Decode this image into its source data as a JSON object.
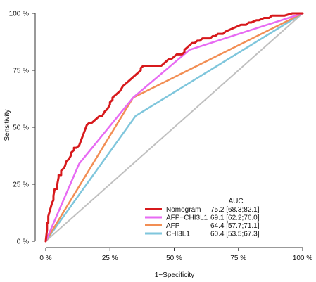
{
  "chart_data": {
    "type": "line",
    "title": "",
    "xlabel": "1−Specificity",
    "ylabel": "Sensitivity",
    "xlim": [
      0,
      100
    ],
    "ylim": [
      0,
      100
    ],
    "xticks": [
      0,
      25,
      50,
      75,
      100
    ],
    "yticks": [
      0,
      25,
      50,
      75,
      100
    ],
    "tick_labels_x": [
      "0 %",
      "25 %",
      "50 %",
      "75 %",
      "100 %"
    ],
    "tick_labels_y": [
      "0 %",
      "25 %",
      "50 %",
      "75 %",
      "100 %"
    ],
    "grid": false,
    "legend": {
      "title": "AUC",
      "position": "bottom-right"
    },
    "reference_line": {
      "color": "#c0c0c0",
      "points": [
        [
          0,
          0
        ],
        [
          100,
          100
        ]
      ]
    },
    "series": [
      {
        "name": "Nomogram",
        "auc": "75.2 [68.3;82.1]",
        "color": "#d7191c",
        "points": [
          [
            0,
            0
          ],
          [
            0.5,
            5
          ],
          [
            0.5,
            8
          ],
          [
            1,
            8
          ],
          [
            1,
            11
          ],
          [
            1.5,
            13
          ],
          [
            2,
            15
          ],
          [
            2.5,
            17
          ],
          [
            3,
            18
          ],
          [
            3,
            20
          ],
          [
            3.5,
            23
          ],
          [
            4,
            23
          ],
          [
            4.5,
            23
          ],
          [
            4.5,
            25
          ],
          [
            5,
            28
          ],
          [
            5,
            29
          ],
          [
            6,
            29
          ],
          [
            6,
            31
          ],
          [
            7,
            32
          ],
          [
            7.5,
            33
          ],
          [
            8,
            35
          ],
          [
            9,
            36
          ],
          [
            10,
            38
          ],
          [
            10,
            39
          ],
          [
            11,
            40
          ],
          [
            11,
            41
          ],
          [
            12,
            41
          ],
          [
            13,
            42
          ],
          [
            14,
            45
          ],
          [
            15,
            48
          ],
          [
            16,
            51
          ],
          [
            17,
            52
          ],
          [
            18,
            52
          ],
          [
            19,
            53
          ],
          [
            20,
            54
          ],
          [
            21,
            55
          ],
          [
            22,
            55
          ],
          [
            23,
            57
          ],
          [
            24,
            58
          ],
          [
            25,
            60
          ],
          [
            25,
            61
          ],
          [
            26,
            62
          ],
          [
            26,
            63
          ],
          [
            27,
            64
          ],
          [
            28,
            65
          ],
          [
            29,
            66
          ],
          [
            30,
            68
          ],
          [
            31,
            69
          ],
          [
            32,
            70
          ],
          [
            33,
            71
          ],
          [
            34,
            72
          ],
          [
            35,
            73
          ],
          [
            36,
            74
          ],
          [
            37,
            75
          ],
          [
            37,
            76
          ],
          [
            38,
            77
          ],
          [
            40,
            77
          ],
          [
            42,
            77
          ],
          [
            44,
            77
          ],
          [
            45,
            77
          ],
          [
            46,
            78
          ],
          [
            47,
            79
          ],
          [
            48,
            80
          ],
          [
            49,
            80
          ],
          [
            50,
            81
          ],
          [
            51,
            82
          ],
          [
            52,
            82
          ],
          [
            53,
            82
          ],
          [
            54,
            83
          ],
          [
            54,
            84
          ],
          [
            55,
            85
          ],
          [
            56,
            86
          ],
          [
            57,
            87
          ],
          [
            58,
            87
          ],
          [
            59,
            88
          ],
          [
            60,
            88
          ],
          [
            61,
            89
          ],
          [
            62,
            89
          ],
          [
            64,
            89
          ],
          [
            65,
            90
          ],
          [
            66,
            90
          ],
          [
            67,
            91
          ],
          [
            68,
            91
          ],
          [
            69,
            91
          ],
          [
            70,
            92
          ],
          [
            72,
            93
          ],
          [
            74,
            94
          ],
          [
            76,
            95
          ],
          [
            78,
            95
          ],
          [
            79,
            96
          ],
          [
            80,
            96
          ],
          [
            82,
            97
          ],
          [
            83,
            97
          ],
          [
            85,
            98
          ],
          [
            87,
            98
          ],
          [
            88,
            99
          ],
          [
            90,
            99
          ],
          [
            93,
            99
          ],
          [
            96,
            100
          ],
          [
            98,
            100
          ],
          [
            100,
            100
          ]
        ]
      },
      {
        "name": "AFP+CHI3L1",
        "auc": "69.1 [62.2;76.0]",
        "color": "#e76bf3",
        "points": [
          [
            0,
            0
          ],
          [
            13,
            34
          ],
          [
            34,
            63
          ],
          [
            56,
            84
          ],
          [
            100,
            100
          ]
        ]
      },
      {
        "name": "AFP",
        "auc": "64.4 [57.7;71.1]",
        "color": "#f28e54",
        "points": [
          [
            0,
            0
          ],
          [
            34,
            63
          ],
          [
            100,
            100
          ]
        ]
      },
      {
        "name": "CHI3L1",
        "auc": "60.4 [53.5;67.3]",
        "color": "#7fc6dc",
        "points": [
          [
            0,
            0
          ],
          [
            35,
            55
          ],
          [
            100,
            100
          ]
        ]
      }
    ]
  }
}
